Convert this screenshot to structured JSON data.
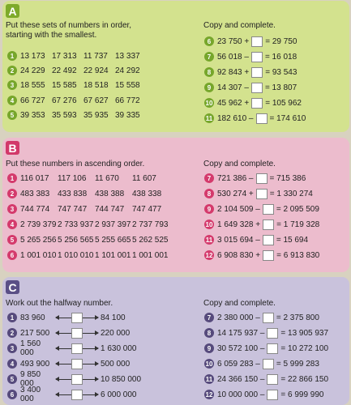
{
  "section_a": {
    "letter": "A",
    "left_instruction": "Put these sets of numbers in order, starting with the smallest.",
    "right_instruction": "Copy and complete.",
    "left_rows": [
      {
        "n": "1",
        "vals": [
          "13 173",
          "17 313",
          "11 737",
          "13 337"
        ]
      },
      {
        "n": "2",
        "vals": [
          "24 229",
          "22 492",
          "22 924",
          "24 292"
        ]
      },
      {
        "n": "3",
        "vals": [
          "18 555",
          "15 585",
          "18 518",
          "15 558"
        ]
      },
      {
        "n": "4",
        "vals": [
          "66 727",
          "67 276",
          "67 627",
          "66 772"
        ]
      },
      {
        "n": "5",
        "vals": [
          "39 353",
          "35 593",
          "35 935",
          "39 335"
        ]
      }
    ],
    "right_rows": [
      {
        "n": "6",
        "pre": "23 750 +",
        "post": "= 29 750"
      },
      {
        "n": "7",
        "pre": "56 018 –",
        "post": "= 16 018"
      },
      {
        "n": "8",
        "pre": "92 843 +",
        "post": "= 93 543"
      },
      {
        "n": "9",
        "pre": "14 307 –",
        "post": "= 13 807"
      },
      {
        "n": "10",
        "pre": "45 962 +",
        "post": "= 105 962"
      },
      {
        "n": "11",
        "pre": "182 610 –",
        "post": "= 174 610"
      }
    ]
  },
  "section_b": {
    "letter": "B",
    "left_instruction": "Put these numbers in ascending order.",
    "right_instruction": "Copy and complete.",
    "left_rows": [
      {
        "n": "1",
        "vals": [
          "116 017",
          "117 106",
          "11 670",
          "11 607"
        ]
      },
      {
        "n": "2",
        "vals": [
          "483 383",
          "433 838",
          "438 388",
          "438 338"
        ]
      },
      {
        "n": "3",
        "vals": [
          "744 774",
          "747 747",
          "744 747",
          "747 477"
        ]
      },
      {
        "n": "4",
        "vals": [
          "2 739 379",
          "2 733 937",
          "2 937 397",
          "2 737 793"
        ]
      },
      {
        "n": "5",
        "vals": [
          "5 265 256",
          "5 256 565",
          "5 255 665",
          "5 262 525"
        ]
      },
      {
        "n": "6",
        "vals": [
          "1 001 010",
          "1 010 010",
          "1 101 001",
          "1 001 001"
        ]
      }
    ],
    "right_rows": [
      {
        "n": "7",
        "pre": "721 386 –",
        "post": "= 715 386"
      },
      {
        "n": "8",
        "pre": "530 274 +",
        "post": "= 1 330 274"
      },
      {
        "n": "9",
        "pre": "2 104 509 –",
        "post": "= 2 095 509"
      },
      {
        "n": "10",
        "pre": "1 649 328 +",
        "post": "= 1 719 328"
      },
      {
        "n": "11",
        "pre": "3 015 694 –",
        "post": "= 15 694"
      },
      {
        "n": "12",
        "pre": "6 908 830 +",
        "post": "= 6 913 830"
      }
    ]
  },
  "section_c": {
    "letter": "C",
    "left_instruction": "Work out the halfway number.",
    "right_instruction": "Copy and complete.",
    "left_rows": [
      {
        "n": "1",
        "start": "83 960",
        "end": "84 100"
      },
      {
        "n": "2",
        "start": "217 500",
        "end": "220 000"
      },
      {
        "n": "3",
        "start": "1 560 000",
        "end": "1 630 000"
      },
      {
        "n": "4",
        "start": "493 900",
        "end": "500 000"
      },
      {
        "n": "5",
        "start": "9 850 000",
        "end": "10 850 000"
      },
      {
        "n": "6",
        "start": "3 400 000",
        "end": "6 000 000"
      }
    ],
    "right_rows": [
      {
        "n": "7",
        "pre": "2 380 000 –",
        "post": "= 2 375 800"
      },
      {
        "n": "8",
        "pre": "14 175 937 –",
        "post": "= 13 905 937"
      },
      {
        "n": "9",
        "pre": "30 572 100 –",
        "post": "= 10 272 100"
      },
      {
        "n": "10",
        "pre": "6 059 283 –",
        "post": "= 5 999 283"
      },
      {
        "n": "11",
        "pre": "24 366 150 –",
        "post": "= 22 866 150"
      },
      {
        "n": "12",
        "pre": "10 000 000 –",
        "post": "= 6 999 990"
      }
    ]
  }
}
